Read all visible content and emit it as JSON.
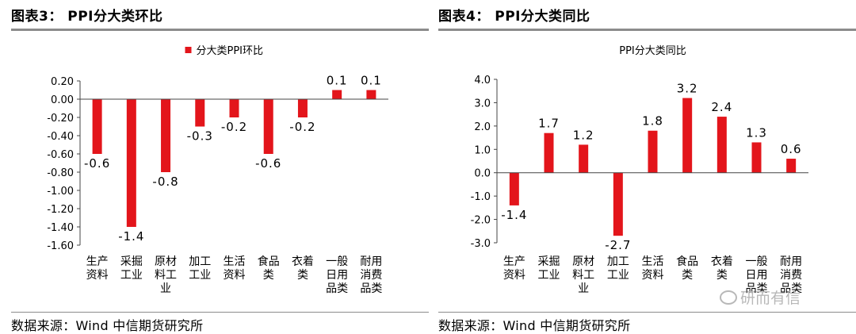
{
  "charts": [
    {
      "title": "图表3： PPI分大类环比",
      "source": "数据来源：Wind 中信期货研究所",
      "chart_data": {
        "type": "bar",
        "legend_label": "分大类PPI环比",
        "legend_position": "top-center",
        "categories": [
          "生产资料",
          "采掘工业",
          "原材料工业",
          "加工工业",
          "生活资料",
          "食品类",
          "衣着类",
          "一般日用品类",
          "耐用消费品类"
        ],
        "category_lines": [
          [
            "生产",
            "资料"
          ],
          [
            "采掘",
            "工业"
          ],
          [
            "原材",
            "料工",
            "业"
          ],
          [
            "加工",
            "工业"
          ],
          [
            "生活",
            "资料"
          ],
          [
            "食品",
            "类"
          ],
          [
            "衣着",
            "类"
          ],
          [
            "一般",
            "日用",
            "品类"
          ],
          [
            "耐用",
            "消费",
            "品类"
          ]
        ],
        "values": [
          -0.6,
          -1.4,
          -0.8,
          -0.3,
          -0.2,
          -0.6,
          -0.2,
          0.1,
          0.1
        ],
        "value_labels": [
          "-0.6",
          "-1.4",
          "-0.8",
          "-0.3",
          "-0.2",
          "-0.6",
          "-0.2",
          "0.1",
          "0.1"
        ],
        "ylim": [
          -1.6,
          0.2
        ],
        "yticks": [
          0.2,
          0.0,
          -0.2,
          -0.4,
          -0.6,
          -0.8,
          -1.0,
          -1.2,
          -1.4,
          -1.6
        ],
        "ytick_labels": [
          "0.20",
          "0.00",
          "-0.20",
          "-0.40",
          "-0.60",
          "-0.80",
          "-1.00",
          "-1.20",
          "-1.40",
          "-1.60"
        ],
        "bar_color": "#e3151b",
        "grid": false
      }
    },
    {
      "title": "图表4： PPI分大类同比",
      "source": "数据来源：Wind 中信期货研究所",
      "chart_data": {
        "type": "bar",
        "chart_title": "PPI分大类同比",
        "categories": [
          "生产资料",
          "采掘工业",
          "原材料工业",
          "加工工业",
          "生活资料",
          "食品类",
          "衣着类",
          "一般日用品类",
          "耐用消费品类"
        ],
        "category_lines": [
          [
            "生产",
            "资料"
          ],
          [
            "采掘",
            "工业"
          ],
          [
            "原材",
            "料工",
            "业"
          ],
          [
            "加工",
            "工业"
          ],
          [
            "生活",
            "资料"
          ],
          [
            "食品",
            "类"
          ],
          [
            "衣着",
            "类"
          ],
          [
            "一般",
            "日用",
            "品类"
          ],
          [
            "耐用",
            "消费",
            "品类"
          ]
        ],
        "values": [
          -1.4,
          1.7,
          1.2,
          -2.7,
          1.8,
          3.2,
          2.4,
          1.3,
          0.6
        ],
        "value_labels": [
          "-1.4",
          "1.7",
          "1.2",
          "-2.7",
          "1.8",
          "3.2",
          "2.4",
          "1.3",
          "0.6"
        ],
        "ylim": [
          -3.0,
          4.0
        ],
        "yticks": [
          4.0,
          3.0,
          2.0,
          1.0,
          0.0,
          -1.0,
          -2.0,
          -3.0
        ],
        "ytick_labels": [
          "4.0",
          "3.0",
          "2.0",
          "1.0",
          "0.0",
          "-1.0",
          "-2.0",
          "-3.0"
        ],
        "bar_color": "#e3151b",
        "grid": false
      }
    }
  ],
  "watermark": "研而有信"
}
